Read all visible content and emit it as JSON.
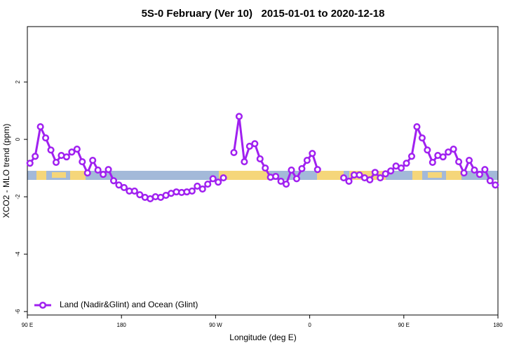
{
  "chart_data": {
    "type": "line",
    "title": "5S-0 February (Ver 10)   2015-01-01 to 2020-12-18",
    "x_label": "Longitude (deg E)",
    "y_label": "XCO2 - MLO trend (ppm)",
    "xlim": [
      90,
      540
    ],
    "xticks": [
      {
        "value": 90,
        "label": "90 E"
      },
      180,
      {
        "value": 270,
        "label": "90 W"
      },
      {
        "value": 360,
        "label": "0"
      },
      {
        "value": 450,
        "label": "90 E"
      },
      {
        "value": 540,
        "label": "180"
      }
    ],
    "ylim": [
      -6.12,
      3.93
    ],
    "yticks": [
      2,
      0,
      -2,
      -4,
      -6
    ],
    "legend": "bottomleft",
    "x": [
      92.5,
      97.5,
      102.5,
      107.5,
      112.5,
      117.5,
      122.5,
      127.5,
      132.5,
      137.5,
      142.5,
      147.5,
      152.5,
      157.5,
      162.5,
      167.5,
      172.5,
      177.5,
      182.5,
      187.5,
      192.5,
      197.5,
      202.5,
      207.5,
      212.5,
      217.5,
      222.5,
      227.5,
      232.5,
      237.5,
      242.5,
      247.5,
      252.5,
      257.5,
      262.5,
      267.5,
      272.5,
      277.5,
      282.5,
      287.5,
      292.5,
      297.5,
      302.5,
      307.5,
      312.5,
      317.5,
      322.5,
      327.5,
      332.5,
      337.5,
      342.5,
      347.5,
      352.5,
      357.5,
      362.5,
      367.5,
      372.5,
      377.5,
      382.5,
      387.5,
      392.5,
      397.5,
      402.5,
      407.5,
      412.5,
      417.5,
      422.5,
      427.5,
      432.5,
      437.5,
      442.5,
      447.5,
      452.5,
      457.5,
      462.5,
      467.5,
      472.5,
      477.5,
      482.5,
      487.5,
      492.5,
      497.5,
      502.5,
      507.5,
      512.5,
      517.5,
      522.5,
      527.5,
      532.5,
      537.5
    ],
    "series": [
      {
        "name": "Land (Nadir&Glint) and Ocean (Glint)",
        "color": "#a020f0",
        "values": [
          -0.83,
          -0.59,
          0.44,
          0.05,
          -0.37,
          -0.8,
          -0.56,
          -0.61,
          -0.44,
          -0.34,
          -0.78,
          -1.17,
          -0.73,
          -1.07,
          -1.22,
          -1.05,
          -1.44,
          -1.59,
          -1.68,
          -1.8,
          -1.8,
          -1.93,
          -2.02,
          -2.07,
          -2.0,
          -2.02,
          -1.95,
          -1.88,
          -1.83,
          -1.85,
          -1.83,
          -1.8,
          -1.63,
          -1.73,
          -1.56,
          -1.37,
          -1.49,
          -1.34,
          null,
          -0.46,
          0.8,
          -0.78,
          -0.24,
          -0.15,
          -0.68,
          -1.0,
          -1.32,
          -1.29,
          -1.46,
          -1.56,
          -1.07,
          -1.37,
          -1.02,
          -0.73,
          -0.49,
          -1.05,
          null,
          null,
          null,
          null,
          -1.34,
          -1.46,
          -1.24,
          -1.24,
          -1.34,
          -1.41,
          -1.15,
          -1.34,
          -1.2,
          -1.1,
          -0.93,
          -1.0,
          -0.83,
          -0.59,
          0.44,
          0.05,
          -0.37,
          -0.8,
          -0.56,
          -0.61,
          -0.44,
          -0.34,
          -0.78,
          -1.17,
          -0.73,
          -1.07,
          -1.22,
          -1.05,
          -1.44,
          -1.59
        ]
      }
    ]
  }
}
